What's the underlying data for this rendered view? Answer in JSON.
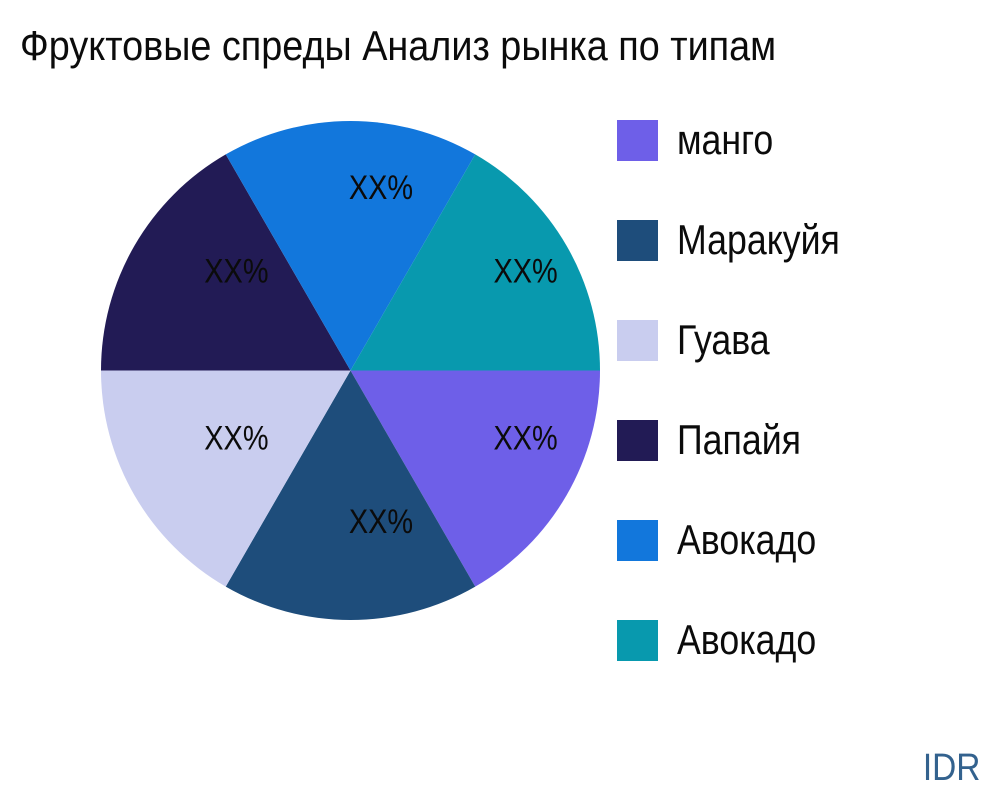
{
  "title": "Фруктовые спреды Анализ рынка по типам",
  "footer": {
    "label": "IDR",
    "color": "#33628e"
  },
  "legend": {
    "position": "right",
    "items": [
      {
        "label": "манго",
        "slug": "mango",
        "color": "#6e5fe8"
      },
      {
        "label": "Маракуйя",
        "slug": "maracuja",
        "color": "#1e4d7b"
      },
      {
        "label": "Гуава",
        "slug": "guava",
        "color": "#c9cdef"
      },
      {
        "label": "Папайя",
        "slug": "papaya",
        "color": "#221b55"
      },
      {
        "label": "Авокадо",
        "slug": "avocado-blue",
        "color": "#1277dc"
      },
      {
        "label": "Авокадо",
        "slug": "avocado-teal",
        "color": "#0899ae"
      }
    ]
  },
  "chart_data": {
    "type": "pie",
    "title": "Фруктовые спреды Анализ рынка по типам",
    "labels": [
      "манго",
      "Маракуйя",
      "Гуава",
      "Папайя",
      "Авокадо",
      "Авокадо"
    ],
    "values": [
      16.67,
      16.67,
      16.67,
      16.67,
      16.67,
      16.67
    ],
    "value_labels": [
      "XX%",
      "XX%",
      "XX%",
      "XX%",
      "XX%",
      "XX%"
    ],
    "colors": [
      "#6e5fe8",
      "#1e4d7b",
      "#c9cdef",
      "#221b55",
      "#1277dc",
      "#0899ae"
    ],
    "start_angle_deg": 0,
    "direction": "clockwise",
    "legend_position": "right",
    "grid": false
  }
}
